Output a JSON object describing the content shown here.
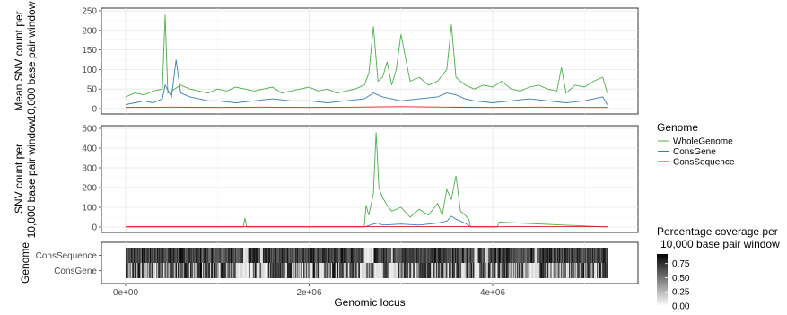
{
  "chart_data": [
    {
      "type": "line",
      "panel": "top",
      "ylabel": "Mean SNV count per\n10,000 base pair window",
      "xlim": [
        0,
        5300000
      ],
      "ylim": [
        0,
        250
      ],
      "y_ticks": [
        "0",
        "50",
        "100",
        "150",
        "200",
        "250"
      ],
      "grid": true,
      "series": [
        {
          "name": "WholeGenome",
          "color": "#4daf4a",
          "x": [
            0,
            100000,
            200000,
            300000,
            400000,
            430000,
            460000,
            500000,
            600000,
            700000,
            800000,
            900000,
            1000000,
            1100000,
            1200000,
            1300000,
            1400000,
            1500000,
            1600000,
            1700000,
            1800000,
            1900000,
            2000000,
            2100000,
            2200000,
            2300000,
            2400000,
            2500000,
            2600000,
            2650000,
            2700000,
            2750000,
            2800000,
            2850000,
            2900000,
            2950000,
            3000000,
            3100000,
            3200000,
            3300000,
            3400000,
            3500000,
            3550000,
            3600000,
            3650000,
            3700000,
            3800000,
            3900000,
            4000000,
            4100000,
            4200000,
            4300000,
            4400000,
            4500000,
            4600000,
            4700000,
            4750000,
            4800000,
            4900000,
            5000000,
            5100000,
            5200000,
            5250000
          ],
          "y": [
            30,
            40,
            35,
            45,
            50,
            240,
            40,
            45,
            60,
            50,
            45,
            40,
            50,
            45,
            55,
            50,
            45,
            50,
            55,
            40,
            45,
            50,
            55,
            45,
            50,
            40,
            45,
            50,
            60,
            90,
            210,
            70,
            80,
            120,
            60,
            100,
            190,
            70,
            80,
            60,
            70,
            100,
            215,
            80,
            70,
            60,
            50,
            60,
            55,
            70,
            50,
            45,
            55,
            60,
            50,
            45,
            105,
            40,
            60,
            55,
            70,
            80,
            40
          ]
        },
        {
          "name": "ConsGene",
          "color": "#377eb8",
          "x": [
            0,
            100000,
            200000,
            300000,
            400000,
            430000,
            500000,
            550000,
            600000,
            700000,
            800000,
            900000,
            1000000,
            1200000,
            1400000,
            1600000,
            1800000,
            2000000,
            2200000,
            2400000,
            2600000,
            2700000,
            2800000,
            3000000,
            3200000,
            3400000,
            3500000,
            3600000,
            3700000,
            3800000,
            4000000,
            4200000,
            4400000,
            4600000,
            4800000,
            5000000,
            5200000,
            5250000
          ],
          "y": [
            10,
            15,
            20,
            15,
            25,
            60,
            30,
            125,
            40,
            30,
            25,
            20,
            20,
            15,
            20,
            25,
            20,
            20,
            15,
            20,
            25,
            40,
            30,
            20,
            25,
            30,
            40,
            35,
            25,
            20,
            15,
            20,
            25,
            20,
            15,
            20,
            30,
            10
          ]
        },
        {
          "name": "ConsSequence",
          "color": "#e41a1c",
          "x": [
            0,
            500000,
            1000000,
            1500000,
            2000000,
            2500000,
            3000000,
            3500000,
            4000000,
            4500000,
            5000000,
            5250000
          ],
          "y": [
            3,
            4,
            3,
            4,
            3,
            4,
            5,
            4,
            3,
            4,
            3,
            3
          ]
        }
      ]
    },
    {
      "type": "line",
      "panel": "middle",
      "ylabel": "SNV count per\n10,000 base pair window",
      "xlim": [
        0,
        5300000
      ],
      "ylim": [
        0,
        500
      ],
      "y_ticks": [
        "0",
        "100",
        "200",
        "300",
        "400",
        "500"
      ],
      "grid": true,
      "series": [
        {
          "name": "WholeGenome",
          "color": "#4daf4a",
          "x": [
            0,
            1000000,
            1280000,
            1300000,
            1320000,
            2600000,
            2620000,
            2650000,
            2700000,
            2730000,
            2760000,
            2800000,
            2850000,
            2900000,
            3000000,
            3100000,
            3200000,
            3300000,
            3400000,
            3450000,
            3500000,
            3550000,
            3600000,
            3650000,
            3700000,
            3740000,
            3760000,
            4000000,
            4050000,
            4070000,
            5250000
          ],
          "y": [
            0,
            0,
            0,
            45,
            0,
            0,
            110,
            60,
            170,
            480,
            200,
            150,
            110,
            80,
            100,
            50,
            90,
            60,
            120,
            60,
            190,
            140,
            260,
            80,
            60,
            40,
            0,
            0,
            0,
            25,
            0
          ]
        },
        {
          "name": "ConsGene",
          "color": "#377eb8",
          "x": [
            2600000,
            2700000,
            2750000,
            2800000,
            3000000,
            3200000,
            3400000,
            3500000,
            3550000,
            3600000,
            3650000,
            3700000,
            3760000
          ],
          "y": [
            0,
            15,
            20,
            10,
            15,
            10,
            20,
            30,
            55,
            40,
            30,
            20,
            0
          ]
        },
        {
          "name": "ConsSequence",
          "color": "#e41a1c",
          "x": [
            0,
            5250000
          ],
          "y": [
            2,
            2
          ]
        }
      ]
    },
    {
      "type": "heatmap",
      "panel": "bottom",
      "ylabel": "Genome",
      "rows": [
        "ConsSequence",
        "ConsGene"
      ],
      "xlim": [
        0,
        5300000
      ],
      "x_ticks": [
        "0e+00",
        "2e+06",
        "4e+06"
      ],
      "xlabel": "Genomic locus",
      "gaps_consseq": [
        [
          1280000,
          1330000
        ],
        [
          1460000,
          1490000
        ],
        [
          2600000,
          2700000
        ],
        [
          2890000,
          2910000
        ],
        [
          3800000,
          3840000
        ],
        [
          3920000,
          3950000
        ],
        [
          4450000,
          4480000
        ]
      ],
      "gaps_consgene": [
        [
          1200000,
          1350000
        ],
        [
          1420000,
          1460000
        ],
        [
          1480000,
          1520000
        ],
        [
          2100000,
          2150000
        ],
        [
          2560000,
          2620000
        ],
        [
          2700000,
          2800000
        ],
        [
          2860000,
          2960000
        ],
        [
          3650000,
          3700000
        ],
        [
          3800000,
          3850000
        ],
        [
          4400000,
          4500000
        ],
        [
          4800000,
          4830000
        ],
        [
          5100000,
          5130000
        ]
      ]
    }
  ],
  "legend_genome": {
    "title": "Genome",
    "items": [
      {
        "label": "WholeGenome",
        "color": "#4daf4a"
      },
      {
        "label": "ConsGene",
        "color": "#377eb8"
      },
      {
        "label": "ConsSequence",
        "color": "#e41a1c"
      }
    ]
  },
  "legend_coverage": {
    "title_line1": "Percentage coverage per",
    "title_line2": "10,000 base pair window",
    "ticks": [
      "0.75",
      "0.50",
      "0.25",
      "0.00"
    ]
  }
}
